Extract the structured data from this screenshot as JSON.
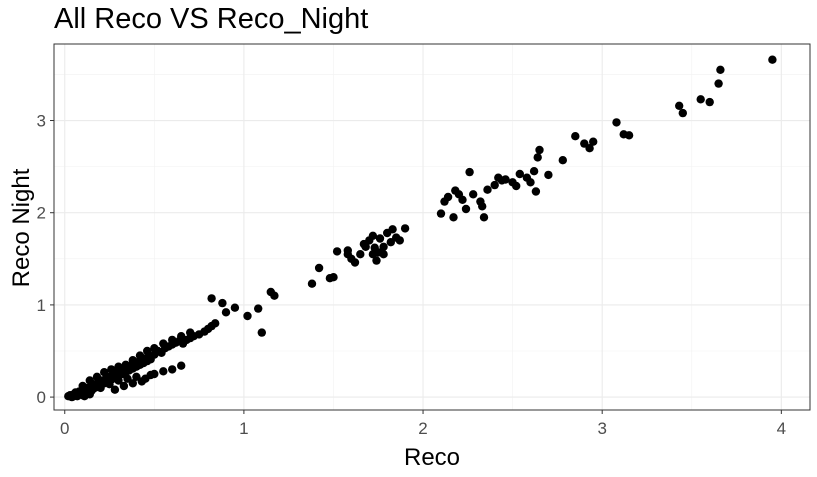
{
  "chart_data": {
    "type": "scatter",
    "title": "All Reco VS Reco_Night",
    "xlabel": "Reco",
    "ylabel": "Reco Night",
    "xlim": [
      -0.06,
      4.16
    ],
    "ylim": [
      -0.14,
      3.83
    ],
    "x_ticks": [
      0,
      1,
      2,
      3,
      4
    ],
    "y_ticks": [
      0,
      1,
      2,
      3
    ],
    "grid": true,
    "point_color": "#000000",
    "points": [
      [
        0.02,
        0.01
      ],
      [
        0.03,
        0.02
      ],
      [
        0.04,
        0.0
      ],
      [
        0.05,
        0.03
      ],
      [
        0.06,
        0.05
      ],
      [
        0.07,
        0.02
      ],
      [
        0.08,
        0.06
      ],
      [
        0.09,
        0.04
      ],
      [
        0.1,
        0.08
      ],
      [
        0.11,
        0.01
      ],
      [
        0.12,
        0.1
      ],
      [
        0.13,
        0.07
      ],
      [
        0.14,
        0.03
      ],
      [
        0.15,
        0.12
      ],
      [
        0.16,
        0.09
      ],
      [
        0.17,
        0.14
      ],
      [
        0.18,
        0.11
      ],
      [
        0.19,
        0.16
      ],
      [
        0.2,
        0.13
      ],
      [
        0.21,
        0.18
      ],
      [
        0.22,
        0.15
      ],
      [
        0.23,
        0.2
      ],
      [
        0.24,
        0.17
      ],
      [
        0.25,
        0.22
      ],
      [
        0.26,
        0.19
      ],
      [
        0.27,
        0.24
      ],
      [
        0.28,
        0.21
      ],
      [
        0.29,
        0.26
      ],
      [
        0.3,
        0.23
      ],
      [
        0.31,
        0.28
      ],
      [
        0.32,
        0.25
      ],
      [
        0.33,
        0.3
      ],
      [
        0.34,
        0.27
      ],
      [
        0.35,
        0.32
      ],
      [
        0.36,
        0.29
      ],
      [
        0.37,
        0.34
      ],
      [
        0.38,
        0.31
      ],
      [
        0.39,
        0.36
      ],
      [
        0.4,
        0.33
      ],
      [
        0.41,
        0.38
      ],
      [
        0.42,
        0.35
      ],
      [
        0.43,
        0.4
      ],
      [
        0.44,
        0.37
      ],
      [
        0.45,
        0.42
      ],
      [
        0.46,
        0.39
      ],
      [
        0.47,
        0.44
      ],
      [
        0.48,
        0.41
      ],
      [
        0.5,
        0.46
      ],
      [
        0.52,
        0.5
      ],
      [
        0.54,
        0.48
      ],
      [
        0.56,
        0.53
      ],
      [
        0.58,
        0.55
      ],
      [
        0.6,
        0.57
      ],
      [
        0.62,
        0.59
      ],
      [
        0.64,
        0.61
      ],
      [
        0.66,
        0.58
      ],
      [
        0.68,
        0.62
      ],
      [
        0.7,
        0.64
      ],
      [
        0.72,
        0.66
      ],
      [
        0.75,
        0.68
      ],
      [
        0.78,
        0.71
      ],
      [
        0.8,
        0.74
      ],
      [
        0.82,
        0.77
      ],
      [
        0.84,
        0.8
      ],
      [
        0.1,
        0.12
      ],
      [
        0.14,
        0.18
      ],
      [
        0.18,
        0.22
      ],
      [
        0.22,
        0.27
      ],
      [
        0.26,
        0.3
      ],
      [
        0.3,
        0.33
      ],
      [
        0.34,
        0.35
      ],
      [
        0.38,
        0.4
      ],
      [
        0.42,
        0.45
      ],
      [
        0.46,
        0.5
      ],
      [
        0.5,
        0.53
      ],
      [
        0.55,
        0.58
      ],
      [
        0.6,
        0.62
      ],
      [
        0.65,
        0.66
      ],
      [
        0.7,
        0.7
      ],
      [
        0.2,
        0.1
      ],
      [
        0.25,
        0.14
      ],
      [
        0.3,
        0.18
      ],
      [
        0.35,
        0.2
      ],
      [
        0.4,
        0.22
      ],
      [
        0.45,
        0.2
      ],
      [
        0.5,
        0.25
      ],
      [
        0.55,
        0.28
      ],
      [
        0.6,
        0.3
      ],
      [
        0.65,
        0.34
      ],
      [
        0.28,
        0.08
      ],
      [
        0.33,
        0.12
      ],
      [
        0.38,
        0.15
      ],
      [
        0.43,
        0.17
      ],
      [
        0.48,
        0.24
      ],
      [
        0.05,
        0.01
      ],
      [
        0.08,
        0.03
      ],
      [
        0.12,
        0.05
      ],
      [
        0.15,
        0.07
      ],
      [
        0.1,
        0.02
      ],
      [
        0.07,
        0.01
      ],
      [
        0.82,
        1.07
      ],
      [
        0.88,
        1.02
      ],
      [
        0.9,
        0.92
      ],
      [
        0.95,
        0.97
      ],
      [
        1.02,
        0.88
      ],
      [
        1.08,
        0.96
      ],
      [
        1.1,
        0.7
      ],
      [
        1.15,
        1.14
      ],
      [
        1.17,
        1.1
      ],
      [
        1.38,
        1.23
      ],
      [
        1.42,
        1.4
      ],
      [
        1.48,
        1.29
      ],
      [
        1.5,
        1.3
      ],
      [
        1.52,
        1.58
      ],
      [
        1.58,
        1.59
      ],
      [
        1.6,
        1.5
      ],
      [
        1.62,
        1.46
      ],
      [
        1.65,
        1.55
      ],
      [
        1.67,
        1.66
      ],
      [
        1.7,
        1.7
      ],
      [
        1.72,
        1.55
      ],
      [
        1.73,
        1.62
      ],
      [
        1.74,
        1.48
      ],
      [
        1.75,
        1.57
      ],
      [
        1.76,
        1.72
      ],
      [
        1.78,
        1.63
      ],
      [
        1.8,
        1.78
      ],
      [
        1.82,
        1.68
      ],
      [
        1.83,
        1.82
      ],
      [
        1.85,
        1.73
      ],
      [
        1.87,
        1.7
      ],
      [
        1.9,
        1.83
      ],
      [
        1.68,
        1.63
      ],
      [
        1.72,
        1.75
      ],
      [
        1.78,
        1.55
      ],
      [
        1.58,
        1.55
      ],
      [
        2.1,
        1.99
      ],
      [
        2.12,
        2.12
      ],
      [
        2.14,
        2.17
      ],
      [
        2.17,
        1.95
      ],
      [
        2.18,
        2.24
      ],
      [
        2.2,
        2.2
      ],
      [
        2.22,
        2.14
      ],
      [
        2.24,
        2.04
      ],
      [
        2.26,
        2.44
      ],
      [
        2.28,
        2.2
      ],
      [
        2.32,
        2.12
      ],
      [
        2.33,
        2.07
      ],
      [
        2.34,
        1.95
      ],
      [
        2.36,
        2.25
      ],
      [
        2.4,
        2.3
      ],
      [
        2.42,
        2.38
      ],
      [
        2.44,
        2.35
      ],
      [
        2.46,
        2.36
      ],
      [
        2.5,
        2.33
      ],
      [
        2.52,
        2.29
      ],
      [
        2.54,
        2.42
      ],
      [
        2.58,
        2.38
      ],
      [
        2.6,
        2.33
      ],
      [
        2.62,
        2.45
      ],
      [
        2.63,
        2.23
      ],
      [
        2.64,
        2.6
      ],
      [
        2.65,
        2.68
      ],
      [
        2.7,
        2.41
      ],
      [
        2.78,
        2.57
      ],
      [
        2.85,
        2.83
      ],
      [
        2.9,
        2.75
      ],
      [
        2.93,
        2.7
      ],
      [
        2.95,
        2.77
      ],
      [
        3.08,
        2.98
      ],
      [
        3.12,
        2.85
      ],
      [
        3.15,
        2.84
      ],
      [
        3.43,
        3.16
      ],
      [
        3.45,
        3.08
      ],
      [
        3.55,
        3.23
      ],
      [
        3.6,
        3.2
      ],
      [
        3.65,
        3.4
      ],
      [
        3.66,
        3.55
      ],
      [
        3.95,
        3.66
      ]
    ]
  }
}
